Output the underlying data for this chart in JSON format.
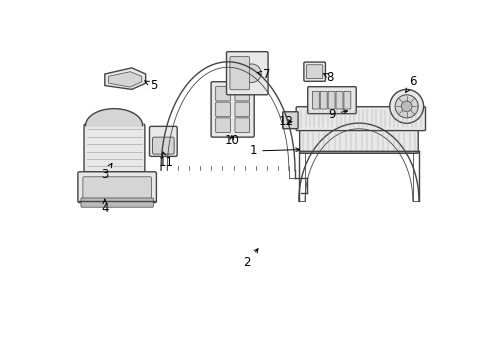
{
  "bg_color": "#ffffff",
  "line_color": "#444444",
  "text_color": "#000000",
  "label_fontsize": 8.5
}
